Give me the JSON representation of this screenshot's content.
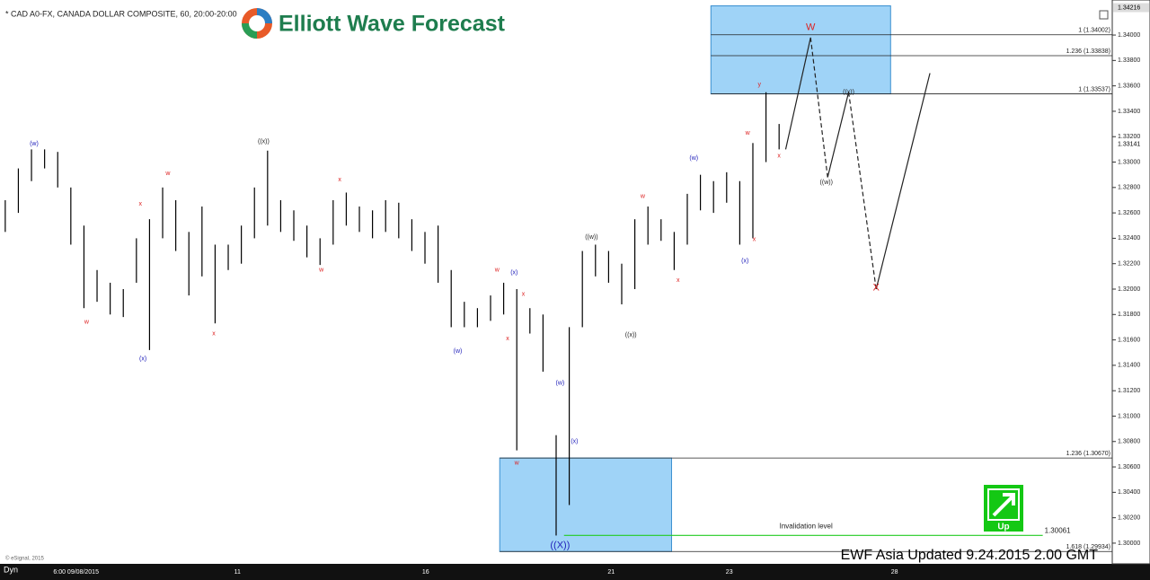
{
  "header": {
    "symbol": "* CAD A0-FX, CANADA DOLLAR COMPOSITE, 60, 20:00-20:00",
    "logo": "Elliott Wave Forecast",
    "footer": "EWF Asia Updated 9.24.2015 2.00 GMT",
    "copyright": "© eSignal, 2015",
    "mode": "Dyn"
  },
  "chart_data": {
    "type": "ohlc",
    "xlim": [
      -0.4,
      84.4
    ],
    "ylim": [
      1.29837,
      1.34276
    ],
    "xticks": [
      {
        "value": 5.4,
        "label": "6:00 09/08/2015"
      },
      {
        "value": 17.7,
        "label": "11"
      },
      {
        "value": 32.05,
        "label": "16"
      },
      {
        "value": 46.2,
        "label": "21"
      },
      {
        "value": 55.2,
        "label": "23"
      },
      {
        "value": 67.8,
        "label": "28"
      }
    ],
    "yticks": [
      {
        "value": 1.3,
        "label": "1.30000"
      },
      {
        "value": 1.302,
        "label": "1.30200"
      },
      {
        "value": 1.304,
        "label": "1.30400"
      },
      {
        "value": 1.306,
        "label": "1.30600"
      },
      {
        "value": 1.308,
        "label": "1.30800"
      },
      {
        "value": 1.31,
        "label": "1.31000"
      },
      {
        "value": 1.312,
        "label": "1.31200"
      },
      {
        "value": 1.314,
        "label": "1.31400"
      },
      {
        "value": 1.316,
        "label": "1.31600"
      },
      {
        "value": 1.318,
        "label": "1.31800"
      },
      {
        "value": 1.32,
        "label": "1.32000"
      },
      {
        "value": 1.322,
        "label": "1.32200"
      },
      {
        "value": 1.324,
        "label": "1.32400"
      },
      {
        "value": 1.326,
        "label": "1.32600"
      },
      {
        "value": 1.328,
        "label": "1.32800"
      },
      {
        "value": 1.33,
        "label": "1.33000"
      },
      {
        "value": 1.332,
        "label": "1.33200"
      },
      {
        "value": 1.334,
        "label": "1.33400"
      },
      {
        "value": 1.336,
        "label": "1.33600"
      },
      {
        "value": 1.338,
        "label": "1.33800"
      },
      {
        "value": 1.34,
        "label": "1.34000"
      }
    ],
    "high_price": 1.34216,
    "last_price": 1.33141,
    "color": "#000000",
    "bars": {
      "x": [
        0,
        1,
        2,
        3,
        4,
        5,
        6,
        7,
        8,
        9,
        10,
        11,
        12,
        13,
        14,
        15,
        16,
        17,
        18,
        19,
        20,
        21,
        22,
        23,
        24,
        25,
        26,
        27,
        28,
        29,
        30,
        31,
        32,
        33,
        34,
        35,
        36,
        37,
        38,
        39,
        40,
        41,
        42,
        43,
        44,
        45,
        46,
        47,
        48,
        49,
        50,
        51,
        52,
        53,
        54,
        55,
        56,
        57,
        58,
        59
      ],
      "high": [
        1.327,
        1.3295,
        1.331,
        1.331,
        1.3308,
        1.328,
        1.325,
        1.3215,
        1.3205,
        1.32,
        1.324,
        1.3255,
        1.328,
        1.327,
        1.3245,
        1.3265,
        1.3235,
        1.3235,
        1.325,
        1.328,
        1.3309,
        1.327,
        1.3262,
        1.325,
        1.324,
        1.327,
        1.3276,
        1.3265,
        1.3262,
        1.327,
        1.3268,
        1.3255,
        1.3245,
        1.325,
        1.3215,
        1.319,
        1.3185,
        1.3195,
        1.3205,
        1.32,
        1.3185,
        1.318,
        1.3085,
        1.317,
        1.323,
        1.3235,
        1.323,
        1.322,
        1.3255,
        1.3265,
        1.3255,
        1.3245,
        1.3275,
        1.329,
        1.3285,
        1.3292,
        1.3285,
        1.3315,
        1.3355,
        1.333
      ],
      "low": [
        1.3245,
        1.326,
        1.3285,
        1.3295,
        1.328,
        1.3235,
        1.3185,
        1.319,
        1.318,
        1.3178,
        1.3205,
        1.3152,
        1.324,
        1.323,
        1.3195,
        1.321,
        1.3173,
        1.3215,
        1.322,
        1.324,
        1.325,
        1.3245,
        1.3238,
        1.3225,
        1.3219,
        1.3235,
        1.325,
        1.3245,
        1.324,
        1.3245,
        1.324,
        1.323,
        1.322,
        1.3205,
        1.317,
        1.317,
        1.317,
        1.3175,
        1.318,
        1.3073,
        1.3165,
        1.3135,
        1.3006,
        1.303,
        1.317,
        1.321,
        1.3205,
        1.3188,
        1.32,
        1.3235,
        1.3238,
        1.3215,
        1.3235,
        1.3262,
        1.326,
        1.3268,
        1.3235,
        1.324,
        1.33,
        1.331
      ]
    },
    "zones": [
      {
        "x": [
          53.8,
          67.5
        ],
        "y": [
          1.33537,
          1.3423
        ]
      },
      {
        "x": [
          37.7,
          50.8
        ],
        "y": [
          1.29934,
          1.3067
        ]
      }
    ],
    "levels": [
      {
        "value": 1.34002,
        "label": "1 (1.34002)",
        "x0": 53.8
      },
      {
        "value": 1.33838,
        "label": "1.236 (1.33838)",
        "x0": 53.8
      },
      {
        "value": 1.33537,
        "label": "1 (1.33537)",
        "x0": 53.8
      },
      {
        "value": 1.3067,
        "label": "1.236 (1.30670)",
        "x0": 37.7
      },
      {
        "value": 1.29934,
        "label": "1.618 (1.29934)",
        "x0": 37.7
      }
    ],
    "invalidation": {
      "label": "Invalidation level",
      "value": 1.30061,
      "x": [
        42.6,
        79.1
      ],
      "color": "#22cc22"
    },
    "projection": {
      "x": [
        59.5,
        61.4,
        62.7,
        64.3,
        66.4,
        70.5
      ],
      "values": [
        1.331,
        1.3398,
        1.3288,
        1.3355,
        1.32,
        1.337
      ]
    },
    "wave_labels": [
      {
        "text": "(w)",
        "x": 2.2,
        "y": 1.33145,
        "color": "#2222bb"
      },
      {
        "text": "w",
        "x": 6.2,
        "y": 1.3174,
        "color": "#dd2222"
      },
      {
        "text": "x",
        "x": 10.3,
        "y": 1.3267,
        "color": "#dd2222"
      },
      {
        "text": "(x)",
        "x": 10.5,
        "y": 1.3145,
        "color": "#2222bb"
      },
      {
        "text": "w",
        "x": 12.4,
        "y": 1.3291,
        "color": "#dd2222"
      },
      {
        "text": "x",
        "x": 15.9,
        "y": 1.3165,
        "color": "#dd2222"
      },
      {
        "text": "((x))",
        "x": 19.7,
        "y": 1.3316,
        "color": "#222222"
      },
      {
        "text": "w",
        "x": 24.1,
        "y": 1.3215,
        "color": "#dd2222"
      },
      {
        "text": "x",
        "x": 25.5,
        "y": 1.3286,
        "color": "#dd2222"
      },
      {
        "text": "(w)",
        "x": 34.5,
        "y": 1.3151,
        "color": "#2222bb"
      },
      {
        "text": "w",
        "x": 37.5,
        "y": 1.3215,
        "color": "#dd2222"
      },
      {
        "text": "x",
        "x": 38.3,
        "y": 1.3161,
        "color": "#dd2222"
      },
      {
        "text": "(x)",
        "x": 38.8,
        "y": 1.3213,
        "color": "#2222bb"
      },
      {
        "text": "x",
        "x": 39.5,
        "y": 1.3196,
        "color": "#dd2222"
      },
      {
        "text": "w",
        "x": 39.0,
        "y": 1.3063,
        "color": "#dd2222"
      },
      {
        "text": "(w)",
        "x": 42.3,
        "y": 1.3126,
        "color": "#2222bb"
      },
      {
        "text": "(x)",
        "x": 43.4,
        "y": 1.308,
        "color": "#2222bb"
      },
      {
        "text": "((X))",
        "x": 42.3,
        "y": 1.2998,
        "color": "#2222bb"
      },
      {
        "text": "((w))",
        "x": 44.7,
        "y": 1.3241,
        "color": "#222222"
      },
      {
        "text": "((x))",
        "x": 47.7,
        "y": 1.3164,
        "color": "#222222"
      },
      {
        "text": "w",
        "x": 48.6,
        "y": 1.3273,
        "color": "#dd2222"
      },
      {
        "text": "x",
        "x": 51.3,
        "y": 1.3207,
        "color": "#dd2222"
      },
      {
        "text": "(w)",
        "x": 52.5,
        "y": 1.3303,
        "color": "#2222bb"
      },
      {
        "text": "(x)",
        "x": 56.4,
        "y": 1.3222,
        "color": "#2222bb"
      },
      {
        "text": "w",
        "x": 56.6,
        "y": 1.3323,
        "color": "#dd2222"
      },
      {
        "text": "x",
        "x": 57.1,
        "y": 1.3239,
        "color": "#dd2222"
      },
      {
        "text": "y",
        "x": 57.5,
        "y": 1.3361,
        "color": "#dd2222"
      },
      {
        "text": "x",
        "x": 59.0,
        "y": 1.3305,
        "color": "#dd2222"
      },
      {
        "text": "W",
        "x": 61.4,
        "y": 1.3406,
        "color": "#dd2222"
      },
      {
        "text": "((w))",
        "x": 62.6,
        "y": 1.3284,
        "color": "#222222"
      },
      {
        "text": "((x))",
        "x": 64.3,
        "y": 1.3355,
        "color": "#222222"
      },
      {
        "text": "X",
        "x": 66.4,
        "y": 1.3201,
        "color": "#dd2222"
      }
    ],
    "trend_label": "Up"
  }
}
